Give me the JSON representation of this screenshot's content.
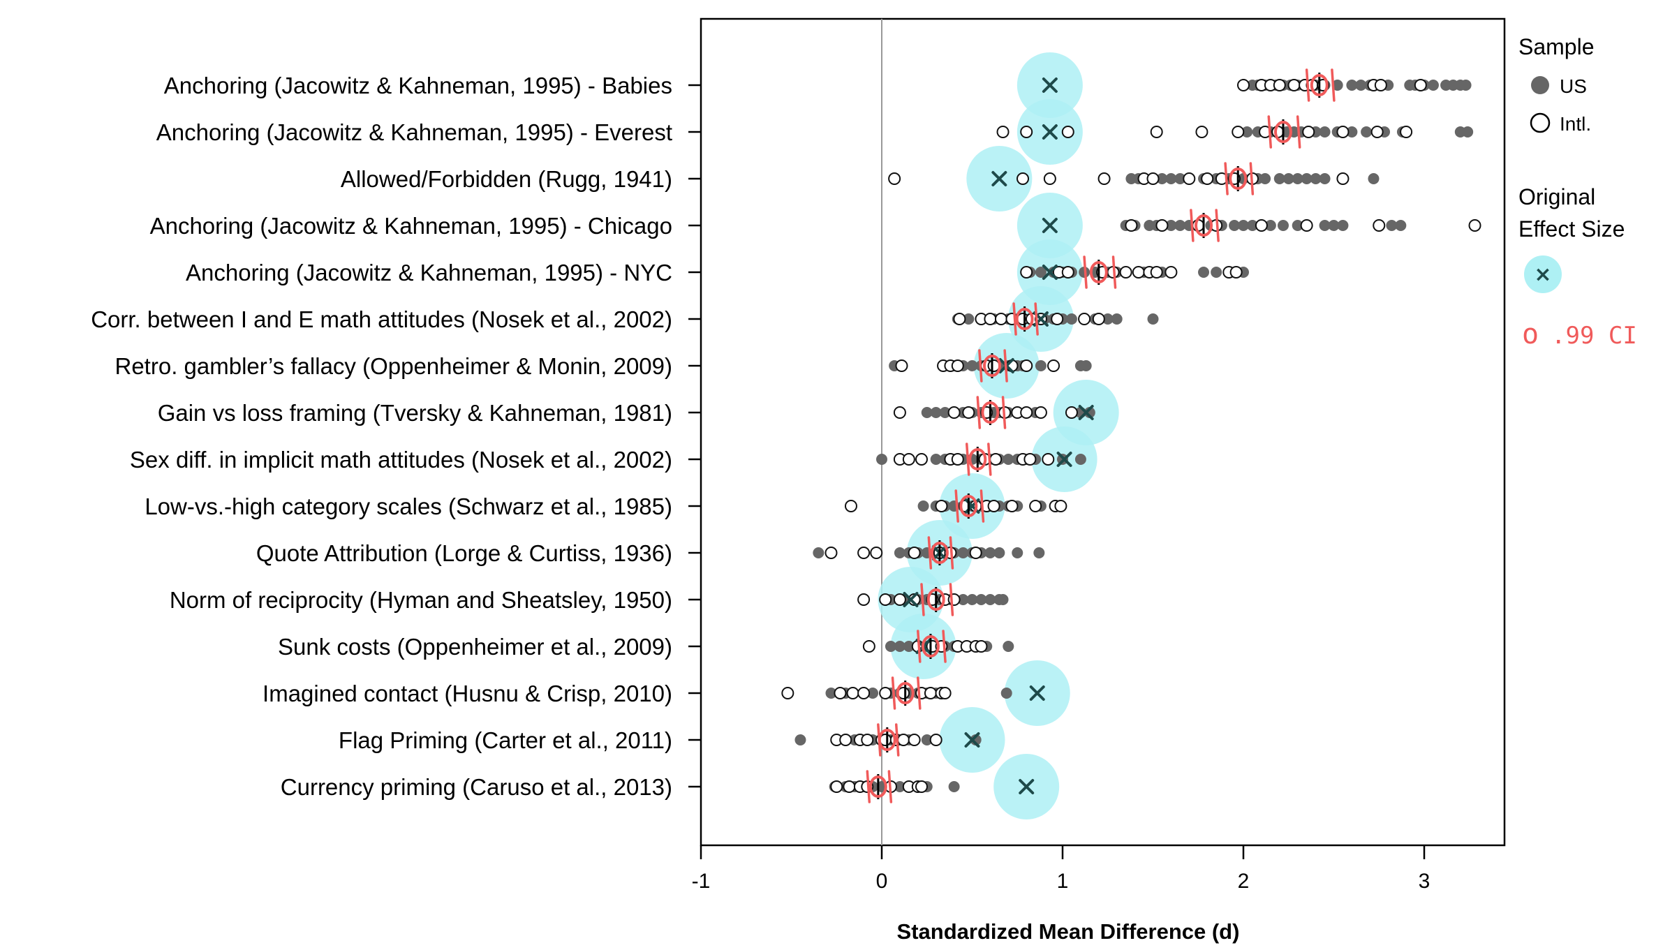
{
  "chart_data": {
    "type": "scatter",
    "xlabel": "Standardized Mean Difference (d)",
    "xlim": [
      -1,
      3.45
    ],
    "xticks": [
      -1,
      0,
      1,
      2,
      3
    ],
    "legend": {
      "position": "right",
      "sample_title": "Sample",
      "us_label": "US",
      "intl_label": "Intl.",
      "original_title_line1": "Original",
      "original_title_line2": "Effect Size",
      "annotation_circle": "o",
      "annotation_ci": ".99 CI"
    },
    "colors": {
      "us_dot": "#666666",
      "original_effect": "#aef0f4",
      "annotation": "#f05a5a",
      "marker_x": "#1e4a4a"
    },
    "effects": [
      {
        "label": "Anchoring (Jacowitz & Kahneman, 1995) - Babies",
        "original": 0.93,
        "replication_mean": 2.42,
        "ci": [
          2.35,
          2.49
        ],
        "us": [
          2.05,
          2.08,
          2.12,
          2.18,
          2.22,
          2.26,
          2.3,
          2.36,
          2.4,
          2.45,
          2.52,
          2.6,
          2.65,
          2.7,
          2.72,
          2.8,
          2.92,
          2.95,
          3.0,
          3.05,
          3.12,
          3.16,
          3.2,
          3.23
        ],
        "intl": [
          2.0,
          2.1,
          2.15,
          2.2,
          2.28,
          2.34,
          2.38,
          2.44,
          2.72,
          2.76,
          2.98
        ]
      },
      {
        "label": "Anchoring (Jacowitz & Kahneman, 1995) - Everest",
        "original": 0.93,
        "replication_mean": 2.22,
        "ci": [
          2.14,
          2.3
        ],
        "us": [
          2.02,
          2.08,
          2.15,
          2.2,
          2.24,
          2.28,
          2.32,
          2.4,
          2.45,
          2.52,
          2.6,
          2.68,
          2.78,
          2.88,
          3.2,
          3.24
        ],
        "intl": [
          0.67,
          0.8,
          1.03,
          1.52,
          1.77,
          1.97,
          2.12,
          2.19,
          2.36,
          2.55,
          2.74,
          2.9
        ]
      },
      {
        "label": "Allowed/Forbidden (Rugg, 1941)",
        "original": 0.65,
        "replication_mean": 1.97,
        "ci": [
          1.9,
          2.04
        ],
        "us": [
          1.38,
          1.42,
          1.5,
          1.55,
          1.6,
          1.65,
          1.78,
          1.85,
          1.92,
          2.0,
          2.08,
          2.12,
          2.2,
          2.25,
          2.3,
          2.35,
          2.4,
          2.45,
          2.72
        ],
        "intl": [
          0.07,
          0.78,
          0.93,
          1.23,
          1.45,
          1.5,
          1.7,
          1.8,
          1.88,
          1.95,
          2.05,
          2.55
        ]
      },
      {
        "label": "Anchoring (Jacowitz & Kahneman, 1995) - Chicago",
        "original": 0.93,
        "replication_mean": 1.78,
        "ci": [
          1.71,
          1.85
        ],
        "us": [
          1.35,
          1.4,
          1.48,
          1.52,
          1.6,
          1.65,
          1.7,
          1.82,
          1.88,
          1.95,
          2.0,
          2.05,
          2.1,
          2.15,
          2.22,
          2.3,
          2.45,
          2.5,
          2.55,
          2.82,
          2.87
        ],
        "intl": [
          1.38,
          1.55,
          1.75,
          1.85,
          2.1,
          2.35,
          2.75,
          3.28
        ]
      },
      {
        "label": "Anchoring (Jacowitz & Kahneman, 1995) - NYC",
        "original": 0.93,
        "replication_mean": 1.2,
        "ci": [
          1.12,
          1.28
        ],
        "us": [
          0.82,
          0.88,
          0.95,
          1.0,
          1.05,
          1.12,
          1.18,
          1.25,
          1.3,
          1.35,
          1.45,
          1.55,
          1.78,
          1.85,
          1.95,
          2.0
        ],
        "intl": [
          0.8,
          0.98,
          1.03,
          1.22,
          1.28,
          1.35,
          1.42,
          1.48,
          1.52,
          1.6,
          1.92,
          1.96
        ]
      },
      {
        "label": "Corr. between I and E math attitudes (Nosek et al., 2002)",
        "original": 0.88,
        "replication_mean": 0.79,
        "ci": [
          0.73,
          0.85
        ],
        "us": [
          0.42,
          0.48,
          0.55,
          0.62,
          0.7,
          0.75,
          0.82,
          0.9,
          0.95,
          1.0,
          1.05,
          1.18,
          1.25,
          1.3,
          1.5
        ],
        "intl": [
          0.43,
          0.55,
          0.6,
          0.66,
          0.72,
          0.78,
          0.83,
          0.88,
          0.97,
          1.12,
          1.2
        ]
      },
      {
        "label": "Retro. gambler’s fallacy (Oppenheimer & Monin, 2009)",
        "original": 0.69,
        "replication_mean": 0.61,
        "ci": [
          0.54,
          0.68
        ],
        "us": [
          0.07,
          0.4,
          0.45,
          0.5,
          0.55,
          0.6,
          0.65,
          0.7,
          0.75,
          0.78,
          0.88,
          1.1,
          1.13
        ],
        "intl": [
          0.11,
          0.34,
          0.38,
          0.42,
          0.58,
          0.62,
          0.72,
          0.8,
          0.95
        ]
      },
      {
        "label": "Gain vs loss framing (Tversky & Kahneman, 1981)",
        "original": 1.13,
        "replication_mean": 0.6,
        "ci": [
          0.53,
          0.67
        ],
        "us": [
          0.25,
          0.3,
          0.35,
          0.45,
          0.5,
          0.55,
          0.6,
          0.62,
          0.65,
          0.7,
          0.75,
          0.85,
          1.1,
          1.15
        ],
        "intl": [
          0.1,
          0.4,
          0.48,
          0.58,
          0.68,
          0.75,
          0.8,
          0.88,
          1.05
        ]
      },
      {
        "label": "Sex diff. in implicit math attitudes (Nosek et al., 2002)",
        "original": 1.01,
        "replication_mean": 0.53,
        "ci": [
          0.47,
          0.59
        ],
        "us": [
          0.0,
          0.3,
          0.35,
          0.4,
          0.45,
          0.5,
          0.55,
          0.6,
          0.65,
          0.7,
          0.75,
          0.8,
          0.85,
          1.0,
          1.1
        ],
        "intl": [
          0.1,
          0.15,
          0.22,
          0.38,
          0.42,
          0.57,
          0.63,
          0.78,
          0.82,
          0.92
        ]
      },
      {
        "label": "Low-vs.-high category scales (Schwarz et al., 1985)",
        "original": 0.5,
        "replication_mean": 0.48,
        "ci": [
          0.41,
          0.55
        ],
        "us": [
          0.23,
          0.3,
          0.35,
          0.4,
          0.45,
          0.5,
          0.55,
          0.6,
          0.65,
          0.7,
          0.75,
          0.85,
          0.88
        ],
        "intl": [
          -0.17,
          0.33,
          0.46,
          0.52,
          0.58,
          0.62,
          0.72,
          0.85,
          0.96,
          0.99
        ]
      },
      {
        "label": "Quote Attribution (Lorge & Curtiss, 1936)",
        "original": 0.32,
        "replication_mean": 0.32,
        "ci": [
          0.26,
          0.38
        ],
        "us": [
          -0.35,
          0.1,
          0.15,
          0.2,
          0.25,
          0.3,
          0.35,
          0.4,
          0.45,
          0.5,
          0.55,
          0.6,
          0.65,
          0.75,
          0.87
        ],
        "intl": [
          -0.28,
          -0.1,
          -0.03,
          0.18,
          0.32,
          0.38,
          0.52
        ]
      },
      {
        "label": "Norm of reciprocity (Hyman and Sheatsley, 1950)",
        "original": 0.16,
        "replication_mean": 0.3,
        "ci": [
          0.22,
          0.38
        ],
        "us": [
          0.05,
          0.12,
          0.2,
          0.25,
          0.32,
          0.38,
          0.45,
          0.5,
          0.55,
          0.6,
          0.65,
          0.67
        ],
        "intl": [
          -0.1,
          0.02,
          0.1,
          0.18,
          0.28,
          0.35,
          0.4
        ]
      },
      {
        "label": "Sunk costs (Oppenheimer et al., 2009)",
        "original": 0.23,
        "replication_mean": 0.27,
        "ci": [
          0.2,
          0.34
        ],
        "us": [
          0.05,
          0.1,
          0.15,
          0.2,
          0.25,
          0.3,
          0.35,
          0.4,
          0.48,
          0.58,
          0.7
        ],
        "intl": [
          -0.07,
          0.2,
          0.28,
          0.33,
          0.42,
          0.47,
          0.52,
          0.55
        ]
      },
      {
        "label": "Imagined contact (Husnu & Crisp, 2010)",
        "original": 0.86,
        "replication_mean": 0.13,
        "ci": [
          0.06,
          0.2
        ],
        "us": [
          -0.28,
          -0.2,
          -0.05,
          0.05,
          0.1,
          0.15,
          0.2,
          0.25,
          0.3,
          0.34,
          0.69
        ],
        "intl": [
          -0.52,
          -0.23,
          -0.16,
          -0.1,
          0.02,
          0.12,
          0.22,
          0.27,
          0.33,
          0.35
        ]
      },
      {
        "label": "Flag Priming (Carter et al., 2011)",
        "original": 0.5,
        "replication_mean": 0.03,
        "ci": [
          -0.02,
          0.08
        ],
        "us": [
          -0.45,
          -0.25,
          -0.15,
          -0.05,
          0.05,
          0.1,
          0.15,
          0.25,
          0.3,
          0.52
        ],
        "intl": [
          -0.25,
          -0.2,
          -0.12,
          -0.08,
          0.0,
          0.02,
          0.08,
          0.12,
          0.18,
          0.3
        ]
      },
      {
        "label": "Currency priming (Caruso et al., 2013)",
        "original": 0.8,
        "replication_mean": -0.02,
        "ci": [
          -0.08,
          0.04
        ],
        "us": [
          -0.26,
          -0.2,
          -0.15,
          -0.1,
          -0.05,
          0.0,
          0.05,
          0.1,
          0.15,
          0.2,
          0.25,
          0.4
        ],
        "intl": [
          -0.25,
          -0.18,
          -0.12,
          -0.08,
          0.05,
          0.15,
          0.2,
          0.22
        ]
      }
    ]
  }
}
